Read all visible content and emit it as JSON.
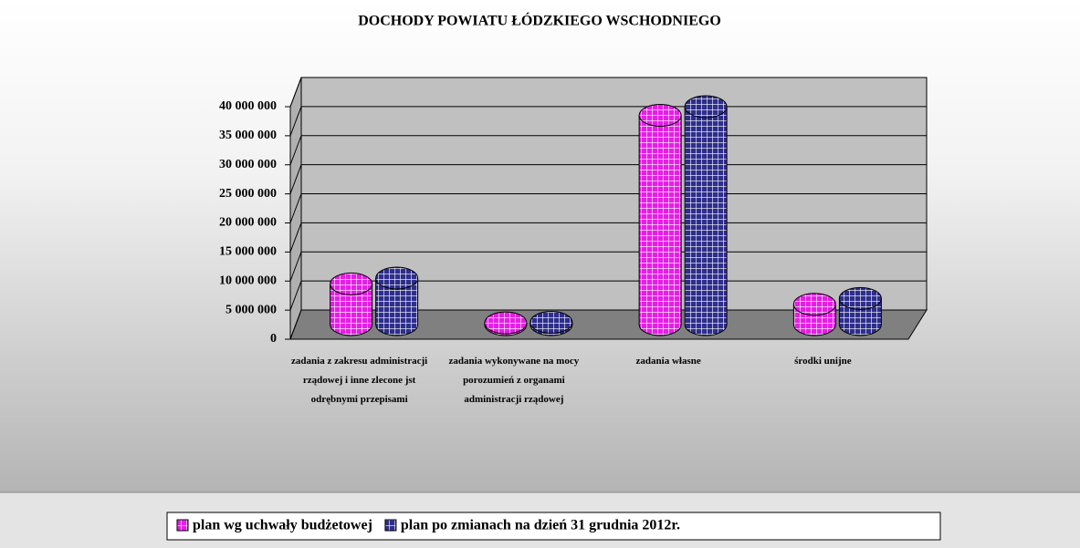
{
  "chart_data": {
    "type": "bar3d-cylinder",
    "title": "DOCHODY POWIATU ŁÓDZKIEGO WSCHODNIEGO",
    "categories": [
      "zadania z zakresu administracji rządowej i inne zlecone jst odrębnymi przepisami",
      "zadania wykonywane na mocy porozumień z organami administracji rządowej",
      "zadania własne",
      "środki unijne"
    ],
    "series": [
      {
        "name": "plan wg uchwały budżetowej",
        "color": "#e61ee6",
        "values": [
          7000000,
          300000,
          36000000,
          3500000
        ]
      },
      {
        "name": "plan po zmianach na dzień 31 grudnia 2012r.",
        "color": "#2e2e8c",
        "values": [
          8000000,
          400000,
          37500000,
          4500000
        ]
      }
    ],
    "ylim": [
      0,
      40000000
    ],
    "yticks": [
      0,
      {
        "value": 5000000,
        "label": "5 000 000"
      },
      {
        "value": 10000000,
        "label": "10 000 000"
      },
      {
        "value": 15000000,
        "label": "15 000 000"
      },
      {
        "value": 20000000,
        "label": "20 000 000"
      },
      {
        "value": 25000000,
        "label": "25 000 000"
      },
      {
        "value": 30000000,
        "label": "30 000 000"
      },
      {
        "value": 35000000,
        "label": "35 000 000"
      },
      {
        "value": 40000000,
        "label": "40 000 000"
      }
    ],
    "grid": true,
    "legend": "bottom"
  }
}
